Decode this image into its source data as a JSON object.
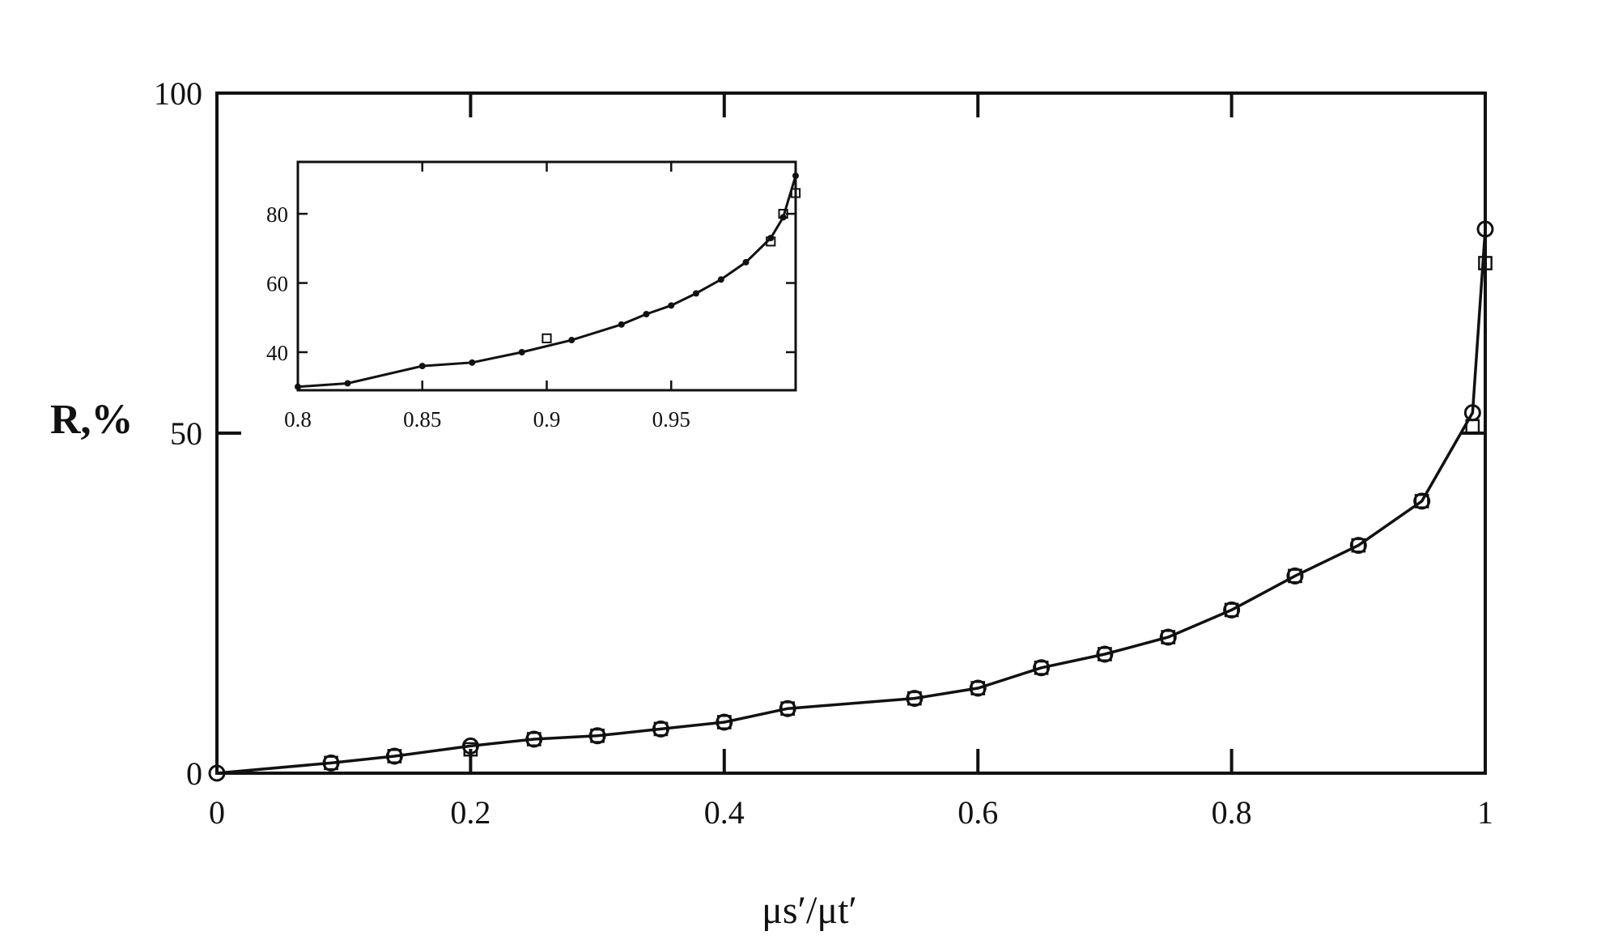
{
  "chart_data": [
    {
      "type": "line",
      "title": "",
      "xlabel": "μs′/μt′",
      "ylabel": "R,%",
      "xlim": [
        0,
        1
      ],
      "ylim": [
        0,
        100
      ],
      "xticks": [
        0,
        0.2,
        0.4,
        0.6,
        0.8,
        1
      ],
      "xtick_labels": [
        "0",
        "0.2",
        "0.4",
        "0.6",
        "0.8",
        "1"
      ],
      "yticks": [
        0,
        50,
        100
      ],
      "ytick_labels": [
        "0",
        "50",
        "100"
      ],
      "grid": false,
      "series": [
        {
          "marker": "open-circle",
          "x": [
            0,
            0.09,
            0.14,
            0.2,
            0.25,
            0.3,
            0.35,
            0.4,
            0.45,
            0.55,
            0.6,
            0.65,
            0.7,
            0.75,
            0.8,
            0.85,
            0.9,
            0.95,
            0.99,
            1.0
          ],
          "y": [
            0,
            1.5,
            2.5,
            4,
            5,
            5.5,
            6.5,
            7.5,
            9.5,
            11,
            12.5,
            15.5,
            17.5,
            20,
            24,
            29,
            33.5,
            40,
            53,
            80
          ]
        },
        {
          "marker": "open-square",
          "x": [
            0.09,
            0.14,
            0.2,
            0.25,
            0.3,
            0.35,
            0.4,
            0.45,
            0.55,
            0.6,
            0.65,
            0.7,
            0.75,
            0.8,
            0.85,
            0.9,
            0.95,
            0.99,
            1.0
          ],
          "y": [
            1.5,
            2.5,
            3.5,
            5,
            5.5,
            6.5,
            7.5,
            9.5,
            11,
            12.5,
            15.5,
            17.5,
            20,
            24,
            29,
            33.5,
            40,
            51,
            75
          ]
        }
      ]
    },
    {
      "type": "line",
      "title": "",
      "inset": true,
      "xlim": [
        0.8,
        1.0
      ],
      "ylim": [
        29,
        95
      ],
      "xticks": [
        0.8,
        0.85,
        0.9,
        0.95
      ],
      "xtick_labels": [
        "0.8",
        "0.85",
        "0.9",
        "0.95"
      ],
      "yticks": [
        40,
        60,
        80
      ],
      "ytick_labels": [
        "40",
        "60",
        "80"
      ],
      "grid": false,
      "series": [
        {
          "marker": "filled-dot",
          "x": [
            0.8,
            0.82,
            0.85,
            0.87,
            0.89,
            0.91,
            0.93,
            0.94,
            0.95,
            0.96,
            0.97,
            0.98,
            0.99,
            0.995,
            1.0
          ],
          "y": [
            30,
            31,
            36,
            37,
            40,
            43.5,
            48,
            51,
            53.5,
            57,
            61,
            66,
            73,
            79,
            91
          ]
        },
        {
          "marker": "open-square",
          "x": [
            0.9,
            0.99,
            0.995,
            1.0
          ],
          "y": [
            44,
            72,
            80,
            86
          ]
        }
      ]
    }
  ]
}
